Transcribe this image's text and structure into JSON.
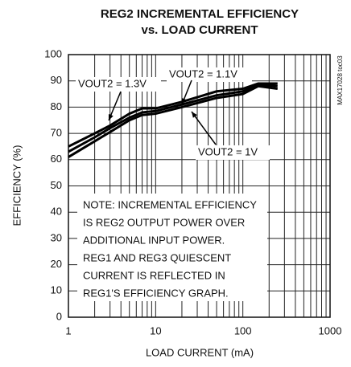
{
  "chart_data": {
    "type": "line",
    "title": "REG2 INCREMENTAL EFFICIENCY",
    "subtitle": "vs. LOAD CURRENT",
    "x_label": "LOAD CURRENT (mA)",
    "y_label": "EFFICIENCY (%)",
    "side_note": "MAX17028 toc03",
    "x": [
      1,
      2,
      3,
      5,
      7,
      10,
      20,
      50,
      100,
      150,
      250
    ],
    "series": [
      {
        "name": "VOUT2 = 1.3V",
        "color": "#000000",
        "values": [
          65,
          70,
          73,
          77.5,
          79.5,
          79.5,
          82,
          86,
          87,
          89,
          89
        ]
      },
      {
        "name": "VOUT2 = 1.1V",
        "color": "#000000",
        "values": [
          63,
          68.5,
          72,
          76,
          78,
          78.5,
          81,
          84.5,
          86,
          88.5,
          88
        ]
      },
      {
        "name": "VOUT2 = 1V",
        "color": "#000000",
        "values": [
          61,
          67,
          70.5,
          75,
          77,
          77.5,
          80,
          83.5,
          85,
          88,
          87
        ]
      }
    ],
    "annotations": [
      "NOTE: INCREMENTAL EFFICIENCY",
      "IS REG2 OUTPUT POWER OVER",
      "ADDITIONAL INPUT POWER.",
      "REG1 AND REG3 QUIESCENT",
      "CURRENT IS REFLECTED IN",
      "REG1'S EFFICIENCY GRAPH."
    ],
    "xlim": [
      1,
      1000
    ],
    "xticks": [
      1,
      10,
      100,
      1000
    ],
    "x_log": true,
    "ylim": [
      0,
      100
    ],
    "yticks": [
      0,
      10,
      20,
      30,
      40,
      50,
      60,
      70,
      80,
      90,
      100
    ],
    "grid": true
  }
}
